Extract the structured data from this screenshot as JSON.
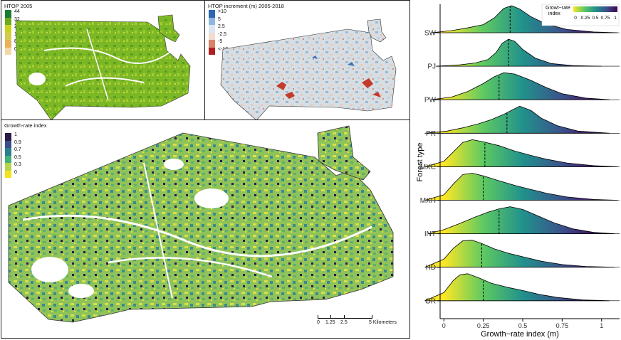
{
  "maps": {
    "htop": {
      "title": "HTOP 2005",
      "legend_labels": [
        "44",
        "32",
        "24",
        "16",
        "8",
        "0"
      ],
      "legend_colors": [
        "#1a7a36",
        "#6aab1c",
        "#c8d420",
        "#d6ca4a",
        "#e8b257",
        "#f2d8a8"
      ]
    },
    "increment": {
      "title": "HTOP increment (m) 2005-2018",
      "legend_labels": [
        ">10",
        "5",
        "2.5",
        "-2.5",
        "-5",
        "<-10"
      ],
      "legend_colors": [
        "#2c67b0",
        "#8fb7dd",
        "#dbe6f0",
        "#f1dcd0",
        "#d9826a",
        "#b21e1e"
      ]
    },
    "growth": {
      "title": "Growth-rate index",
      "legend_labels": [
        "1",
        "0.9",
        "0.7",
        "0.5",
        "0.3",
        "0"
      ],
      "legend_colors": [
        "#2a1a4a",
        "#3b4d8a",
        "#2a7f8e",
        "#46b07a",
        "#b5d64a",
        "#f2e31a"
      ],
      "scalebar": {
        "labels": [
          "0",
          "1.25",
          "2.5",
          "5 Kilometers"
        ]
      }
    }
  },
  "chart_data": {
    "type": "ridgeline",
    "xlabel": "Growth−rate index (m)",
    "ylabel": "Forest type",
    "xlim": [
      -0.15,
      1.12
    ],
    "xticks": [
      0,
      0.25,
      0.5,
      0.75,
      1
    ],
    "xtick_labels": [
      "0",
      "0.25",
      "0.5",
      "0.75",
      "1"
    ],
    "categories": [
      "SW",
      "PJ",
      "PW",
      "PR",
      "MXC",
      "MXH",
      "INT",
      "HD",
      "OR"
    ],
    "colorbar": {
      "title": "Growt−rate index",
      "ticks": [
        "0",
        "0.25",
        "0.5",
        "0.75",
        "1"
      ]
    },
    "grid": false,
    "series": [
      {
        "category": "SW",
        "median": 0.42,
        "x": [
          -0.08,
          0.05,
          0.15,
          0.25,
          0.32,
          0.38,
          0.43,
          0.48,
          0.55,
          0.65,
          0.78,
          0.95,
          1.1
        ],
        "density": [
          0,
          0.08,
          0.18,
          0.3,
          0.55,
          0.9,
          1.0,
          0.88,
          0.6,
          0.32,
          0.12,
          0.03,
          0
        ]
      },
      {
        "category": "PJ",
        "median": 0.41,
        "x": [
          -0.05,
          0.1,
          0.2,
          0.28,
          0.33,
          0.37,
          0.41,
          0.45,
          0.5,
          0.58,
          0.68,
          0.82,
          1.0
        ],
        "density": [
          0,
          0.05,
          0.12,
          0.25,
          0.5,
          0.85,
          1.0,
          0.92,
          0.62,
          0.3,
          0.1,
          0.02,
          0
        ]
      },
      {
        "category": "PW",
        "median": 0.35,
        "x": [
          -0.08,
          0.05,
          0.15,
          0.25,
          0.32,
          0.38,
          0.45,
          0.55,
          0.65,
          0.75,
          0.9,
          1.05
        ],
        "density": [
          0,
          0.1,
          0.3,
          0.6,
          0.85,
          1.0,
          0.95,
          0.72,
          0.45,
          0.22,
          0.06,
          0
        ]
      },
      {
        "category": "PR",
        "median": 0.4,
        "x": [
          -0.12,
          0.02,
          0.12,
          0.22,
          0.3,
          0.38,
          0.44,
          0.48,
          0.55,
          0.62,
          0.72,
          0.85,
          1.05
        ],
        "density": [
          0,
          0.08,
          0.2,
          0.35,
          0.5,
          0.7,
          0.88,
          1.0,
          0.85,
          0.55,
          0.28,
          0.08,
          0
        ]
      },
      {
        "category": "MXC",
        "median": 0.26,
        "x": [
          -0.12,
          0.0,
          0.06,
          0.12,
          0.18,
          0.25,
          0.35,
          0.45,
          0.55,
          0.65,
          0.78,
          0.95,
          1.1
        ],
        "density": [
          0,
          0.2,
          0.55,
          0.9,
          1.0,
          0.92,
          0.78,
          0.58,
          0.42,
          0.28,
          0.14,
          0.04,
          0
        ]
      },
      {
        "category": "MXH",
        "median": 0.25,
        "x": [
          -0.12,
          0.0,
          0.06,
          0.12,
          0.18,
          0.25,
          0.35,
          0.45,
          0.55,
          0.65,
          0.78,
          0.95,
          1.1
        ],
        "density": [
          0,
          0.2,
          0.6,
          0.95,
          1.0,
          0.9,
          0.72,
          0.55,
          0.4,
          0.26,
          0.12,
          0.03,
          0
        ]
      },
      {
        "category": "INT",
        "median": 0.35,
        "x": [
          -0.1,
          0.0,
          0.1,
          0.2,
          0.28,
          0.35,
          0.42,
          0.5,
          0.6,
          0.7,
          0.82,
          0.95,
          1.08
        ],
        "density": [
          0,
          0.15,
          0.38,
          0.62,
          0.8,
          0.92,
          1.0,
          0.9,
          0.65,
          0.4,
          0.18,
          0.05,
          0
        ]
      },
      {
        "category": "HD",
        "median": 0.24,
        "x": [
          -0.12,
          0.0,
          0.06,
          0.12,
          0.18,
          0.24,
          0.32,
          0.42,
          0.52,
          0.62,
          0.75,
          0.9,
          1.08
        ],
        "density": [
          0,
          0.3,
          0.7,
          0.98,
          1.0,
          0.88,
          0.68,
          0.5,
          0.36,
          0.22,
          0.1,
          0.03,
          0
        ]
      },
      {
        "category": "OR",
        "median": 0.25,
        "x": [
          -0.12,
          0.0,
          0.06,
          0.1,
          0.15,
          0.22,
          0.3,
          0.4,
          0.5,
          0.6,
          0.72,
          0.88,
          1.05
        ],
        "density": [
          0,
          0.3,
          0.75,
          0.95,
          1.0,
          0.85,
          0.65,
          0.5,
          0.38,
          0.24,
          0.12,
          0.03,
          0
        ]
      }
    ]
  }
}
